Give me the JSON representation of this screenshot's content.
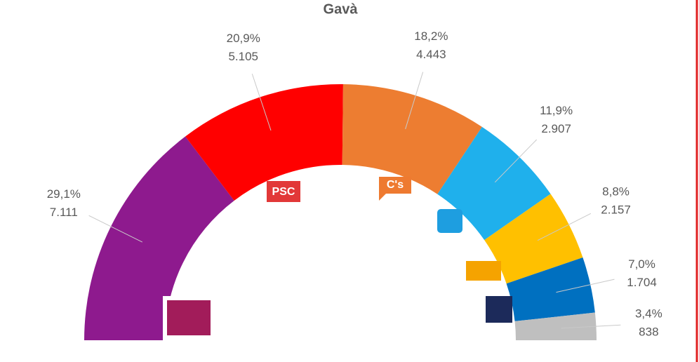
{
  "chart_data": {
    "type": "semi-donut",
    "title": "Gavà",
    "values": [
      7111,
      5105,
      4443,
      2907,
      2157,
      1704,
      838
    ],
    "value_labels": [
      "7.111",
      "5.105",
      "4.443",
      "2.907",
      "2.157",
      "1.704",
      "838"
    ],
    "percentages": [
      29.1,
      20.9,
      18.2,
      11.9,
      8.8,
      7.0,
      3.4
    ],
    "percentage_labels": [
      "29,1%",
      "20,9%",
      "18,2%",
      "11,9%",
      "8,8%",
      "7,0%",
      "3,4%"
    ],
    "colors": [
      "#8e1a8e",
      "#ff0000",
      "#ed7d31",
      "#1fb0ec",
      "#ffc000",
      "#0070c0",
      "#bfbfbf"
    ],
    "logos": [
      "PSC",
      "C's"
    ]
  }
}
